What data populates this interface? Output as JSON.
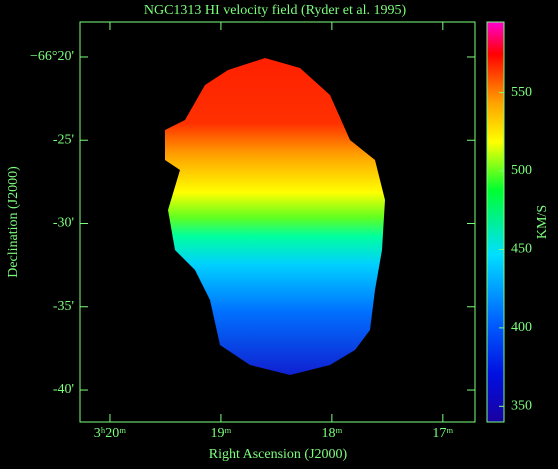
{
  "chart_data": {
    "type": "heatmap",
    "title": "NGC1313  HI velocity field  (Ryder et al. 1995)",
    "xlabel": "Right Ascension (J2000)",
    "ylabel": "Declination (J2000)",
    "colorbar_label": "KM/S",
    "xlim": [
      20.27,
      16.71
    ],
    "xticks": [
      {
        "value": 20,
        "label": "3ʰ20ᵐ"
      },
      {
        "value": 19,
        "label": "19ᵐ"
      },
      {
        "value": 18,
        "label": "18ᵐ"
      },
      {
        "value": 17,
        "label": "17ᵐ"
      }
    ],
    "ylim": [
      41.92,
      17.9
    ],
    "yticks": [
      {
        "value": 20,
        "label": "−66°20'"
      },
      {
        "value": 25,
        "label": "-25'"
      },
      {
        "value": 30,
        "label": "-30'"
      },
      {
        "value": 35,
        "label": "-35'"
      },
      {
        "value": 40,
        "label": "-40'"
      }
    ],
    "clim": [
      340,
      595
    ],
    "cticks": [
      350,
      400,
      450,
      500,
      550
    ]
  }
}
